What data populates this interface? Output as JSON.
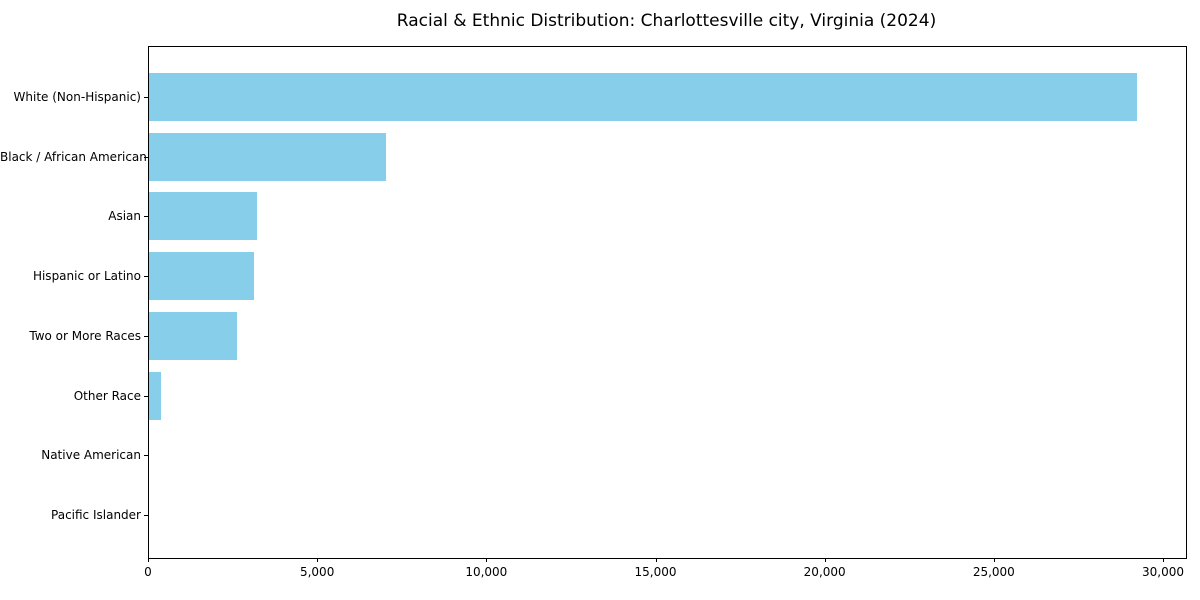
{
  "figure": {
    "title": "Racial & Ethnic Distribution: Charlottesville city, Virginia (2024)"
  },
  "chart_data": {
    "type": "bar",
    "orientation": "horizontal",
    "title": "Racial & Ethnic Distribution: Charlottesville city, Virginia (2024)",
    "categories": [
      "White (Non-Hispanic)",
      "Black / African American",
      "Asian",
      "Hispanic or Latino",
      "Two or More Races",
      "Other Race",
      "Native American",
      "Pacific Islander"
    ],
    "values": [
      29200,
      7000,
      3200,
      3100,
      2600,
      340,
      0,
      0
    ],
    "xlabel": "",
    "ylabel": "",
    "xlim": [
      0,
      30650
    ],
    "x_ticks": [
      0,
      5000,
      10000,
      15000,
      20000,
      25000,
      30000
    ],
    "x_tick_labels": [
      "0",
      "5,000",
      "10,000",
      "15,000",
      "20,000",
      "25,000",
      "30,000"
    ],
    "bar_color": "#87CEEB",
    "axis_color": "#000000",
    "text_color": "#000000",
    "grid": false,
    "legend": false,
    "sort": "descending"
  }
}
